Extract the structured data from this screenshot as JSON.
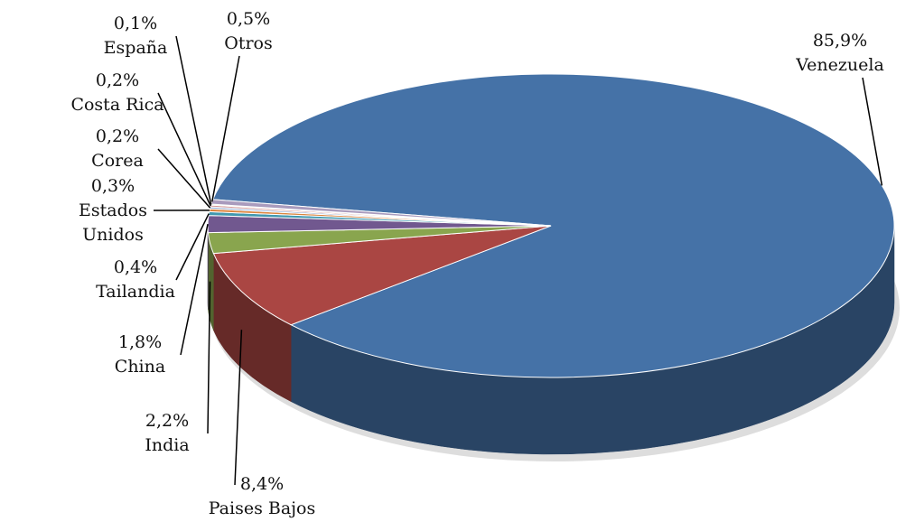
{
  "chart_data": {
    "type": "pie",
    "categories": [
      "Venezuela",
      "Paises Bajos",
      "India",
      "China",
      "Tailandia",
      "Estados Unidos",
      "Corea",
      "Costa Rica",
      "España",
      "Otros"
    ],
    "values": [
      85.9,
      8.4,
      2.2,
      1.8,
      0.4,
      0.3,
      0.2,
      0.2,
      0.1,
      0.5
    ],
    "value_labels": [
      "85,9%",
      "8,4%",
      "2,2%",
      "1,8%",
      "0,4%",
      "0,3%",
      "0,2%",
      "0,2%",
      "0,1%",
      "0,5%"
    ],
    "colors": [
      "#4572a7",
      "#aa4643",
      "#89a54e",
      "#71588f",
      "#4198af",
      "#db843d",
      "#93a9cf",
      "#d19392",
      "#b9cd96",
      "#a99bbd"
    ]
  }
}
